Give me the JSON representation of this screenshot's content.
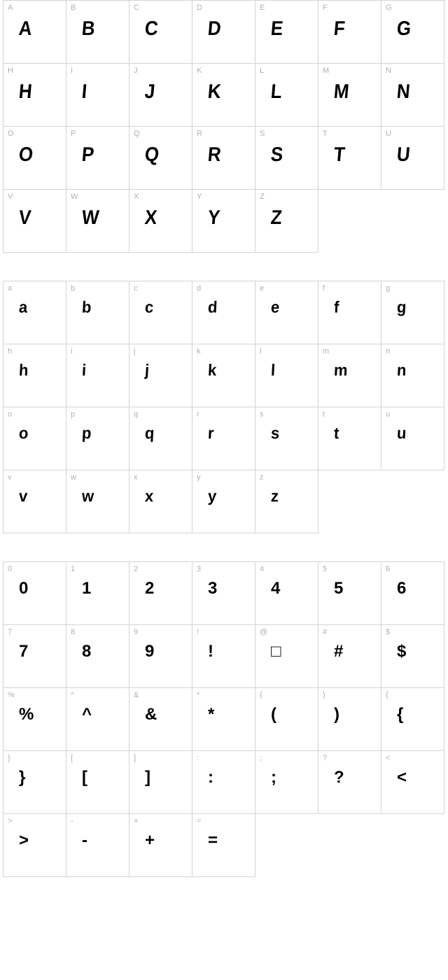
{
  "sections": [
    {
      "id": "uppercase",
      "glyphStyle": "glyph-distort",
      "cells": [
        {
          "label": "A",
          "glyph": "A"
        },
        {
          "label": "B",
          "glyph": "B"
        },
        {
          "label": "C",
          "glyph": "C"
        },
        {
          "label": "D",
          "glyph": "D"
        },
        {
          "label": "E",
          "glyph": "E"
        },
        {
          "label": "F",
          "glyph": "F"
        },
        {
          "label": "G",
          "glyph": "G"
        },
        {
          "label": "H",
          "glyph": "H"
        },
        {
          "label": "I",
          "glyph": "I"
        },
        {
          "label": "J",
          "glyph": "J"
        },
        {
          "label": "K",
          "glyph": "K"
        },
        {
          "label": "L",
          "glyph": "L"
        },
        {
          "label": "M",
          "glyph": "M"
        },
        {
          "label": "N",
          "glyph": "N"
        },
        {
          "label": "O",
          "glyph": "O"
        },
        {
          "label": "P",
          "glyph": "P"
        },
        {
          "label": "Q",
          "glyph": "Q"
        },
        {
          "label": "R",
          "glyph": "R"
        },
        {
          "label": "S",
          "glyph": "S"
        },
        {
          "label": "T",
          "glyph": "T"
        },
        {
          "label": "U",
          "glyph": "U"
        },
        {
          "label": "V",
          "glyph": "V"
        },
        {
          "label": "W",
          "glyph": "W"
        },
        {
          "label": "X",
          "glyph": "X"
        },
        {
          "label": "Y",
          "glyph": "Y"
        },
        {
          "label": "Z",
          "glyph": "Z"
        }
      ]
    },
    {
      "id": "lowercase",
      "glyphStyle": "glyph-distort-lower",
      "cells": [
        {
          "label": "a",
          "glyph": "a"
        },
        {
          "label": "b",
          "glyph": "b"
        },
        {
          "label": "c",
          "glyph": "c"
        },
        {
          "label": "d",
          "glyph": "d"
        },
        {
          "label": "e",
          "glyph": "e"
        },
        {
          "label": "f",
          "glyph": "f"
        },
        {
          "label": "g",
          "glyph": "g"
        },
        {
          "label": "h",
          "glyph": "h"
        },
        {
          "label": "i",
          "glyph": "i"
        },
        {
          "label": "j",
          "glyph": "j"
        },
        {
          "label": "k",
          "glyph": "k"
        },
        {
          "label": "l",
          "glyph": "l"
        },
        {
          "label": "m",
          "glyph": "m"
        },
        {
          "label": "n",
          "glyph": "n"
        },
        {
          "label": "o",
          "glyph": "o"
        },
        {
          "label": "p",
          "glyph": "p"
        },
        {
          "label": "q",
          "glyph": "q"
        },
        {
          "label": "r",
          "glyph": "r"
        },
        {
          "label": "s",
          "glyph": "s"
        },
        {
          "label": "t",
          "glyph": "t"
        },
        {
          "label": "u",
          "glyph": "u"
        },
        {
          "label": "v",
          "glyph": "v"
        },
        {
          "label": "w",
          "glyph": "w"
        },
        {
          "label": "x",
          "glyph": "x"
        },
        {
          "label": "y",
          "glyph": "y"
        },
        {
          "label": "z",
          "glyph": "z"
        }
      ]
    },
    {
      "id": "symbols",
      "glyphStyle": "glyph-symbol",
      "cells": [
        {
          "label": "0",
          "glyph": "0"
        },
        {
          "label": "1",
          "glyph": "1"
        },
        {
          "label": "2",
          "glyph": "2"
        },
        {
          "label": "3",
          "glyph": "3"
        },
        {
          "label": "4",
          "glyph": "4"
        },
        {
          "label": "5",
          "glyph": "5"
        },
        {
          "label": "6",
          "glyph": "6"
        },
        {
          "label": "7",
          "glyph": "7"
        },
        {
          "label": "8",
          "glyph": "8"
        },
        {
          "label": "9",
          "glyph": "9"
        },
        {
          "label": "!",
          "glyph": "!"
        },
        {
          "label": "@",
          "glyph": "□"
        },
        {
          "label": "#",
          "glyph": "#"
        },
        {
          "label": "$",
          "glyph": "$"
        },
        {
          "label": "%",
          "glyph": "%"
        },
        {
          "label": "^",
          "glyph": "^"
        },
        {
          "label": "&",
          "glyph": "&"
        },
        {
          "label": "*",
          "glyph": "*"
        },
        {
          "label": "(",
          "glyph": "("
        },
        {
          "label": ")",
          "glyph": ")"
        },
        {
          "label": "{",
          "glyph": "{"
        },
        {
          "label": "}",
          "glyph": "}"
        },
        {
          "label": "[",
          "glyph": "["
        },
        {
          "label": "]",
          "glyph": "]"
        },
        {
          "label": ":",
          "glyph": ":"
        },
        {
          "label": ";",
          "glyph": ";"
        },
        {
          "label": "?",
          "glyph": "?"
        },
        {
          "label": "<",
          "glyph": "<"
        },
        {
          "label": ">",
          "glyph": ">"
        },
        {
          "label": "-",
          "glyph": "-"
        },
        {
          "label": "+",
          "glyph": "+"
        },
        {
          "label": "=",
          "glyph": "="
        }
      ]
    }
  ],
  "colors": {
    "border": "#d4d4d4",
    "label": "#b0b0b0",
    "glyph": "#000000",
    "background": "#ffffff"
  },
  "cell_size": {
    "width": 90,
    "height": 90
  },
  "label_fontsize": 11,
  "glyph_fontsize": 26
}
